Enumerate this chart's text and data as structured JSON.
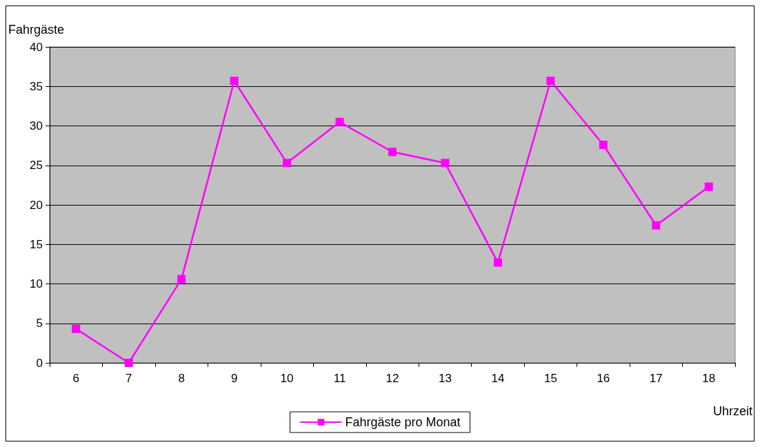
{
  "chart_data": {
    "type": "line",
    "xlabel": "Uhrzeit",
    "ylabel": "Fahrgäste",
    "categories": [
      "6",
      "7",
      "8",
      "9",
      "10",
      "11",
      "12",
      "13",
      "14",
      "15",
      "16",
      "17",
      "18"
    ],
    "series": [
      {
        "name": "Fahrgäste pro Monat",
        "color": "#ff00ff",
        "values": [
          4.3,
          0,
          10.6,
          35.7,
          25.3,
          30.5,
          26.7,
          25.3,
          12.7,
          35.7,
          27.6,
          17.4,
          22.3
        ]
      }
    ],
    "ylim": [
      0,
      40
    ],
    "yticks": [
      0,
      5,
      10,
      15,
      20,
      25,
      30,
      35,
      40
    ],
    "grid": "y",
    "legend": "bottom",
    "marker": "square",
    "line_style": "solid"
  }
}
